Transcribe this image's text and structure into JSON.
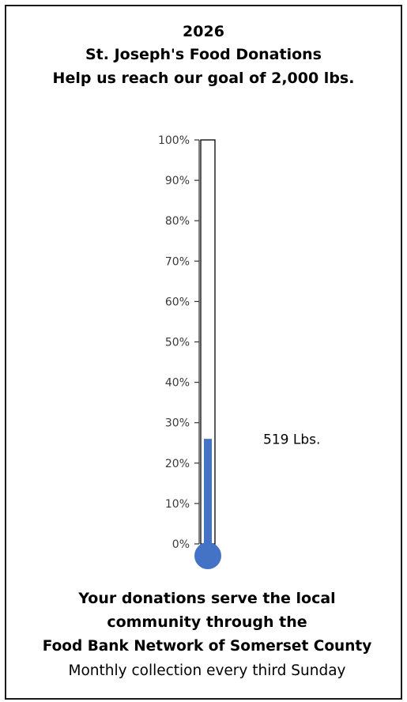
{
  "title": {
    "year": "2026",
    "name": "St. Joseph's Food Donations",
    "goal_text": "Help us reach our goal of 2,000 lbs."
  },
  "chart_data": {
    "type": "bar",
    "categories": [
      ""
    ],
    "values": [
      0.26
    ],
    "ylim": [
      0,
      1
    ],
    "ytick_values": [
      0,
      0.1,
      0.2,
      0.3,
      0.4,
      0.5,
      0.6,
      0.7,
      0.8,
      0.9,
      1.0
    ],
    "ytick_labels": [
      "0%",
      "10%",
      "20%",
      "30%",
      "40%",
      "50%",
      "60%",
      "70%",
      "80%",
      "90%",
      "100%"
    ],
    "data_label": "519  Lbs.",
    "grid": false,
    "legend": "none",
    "colors": {
      "fill": "#4472c4",
      "outline": "#000000",
      "axis": "#333333"
    }
  },
  "footer": {
    "line1": "Your donations serve the local",
    "line2": "community through the",
    "line3": "Food Bank Network of Somerset County",
    "line4": "Monthly collection every third Sunday"
  }
}
